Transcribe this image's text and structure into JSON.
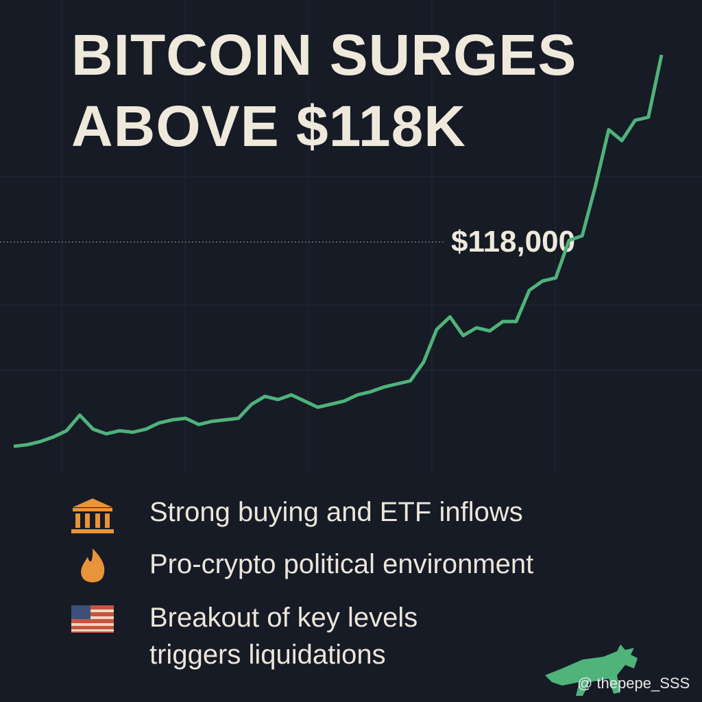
{
  "chart_data": {
    "type": "line",
    "title": "BITCOIN SURGES ABOVE $118K",
    "values": [
      104900,
      105000,
      105200,
      105500,
      105900,
      106900,
      106000,
      105700,
      105900,
      105800,
      106000,
      106400,
      106600,
      106700,
      106300,
      106500,
      106600,
      106700,
      107600,
      108100,
      107900,
      108200,
      107800,
      107400,
      107600,
      107800,
      108200,
      108400,
      108700,
      108900,
      109100,
      110300,
      112400,
      113200,
      112000,
      112500,
      112300,
      112900,
      112900,
      114900,
      115500,
      115700,
      118100,
      118400,
      121600,
      125200,
      124500,
      125800,
      126000,
      130000
    ],
    "color": "#4fb37a",
    "ylim": [
      90000,
      130000
    ],
    "annotations": [
      {
        "value": 118000,
        "label": "$118,000"
      }
    ]
  },
  "bullets": [
    "Strong buying and ETF inflows",
    "Pro-crypto political environment",
    "Breakout of key levels triggers liquidations"
  ],
  "watermark": "@ thepepe_SSS"
}
